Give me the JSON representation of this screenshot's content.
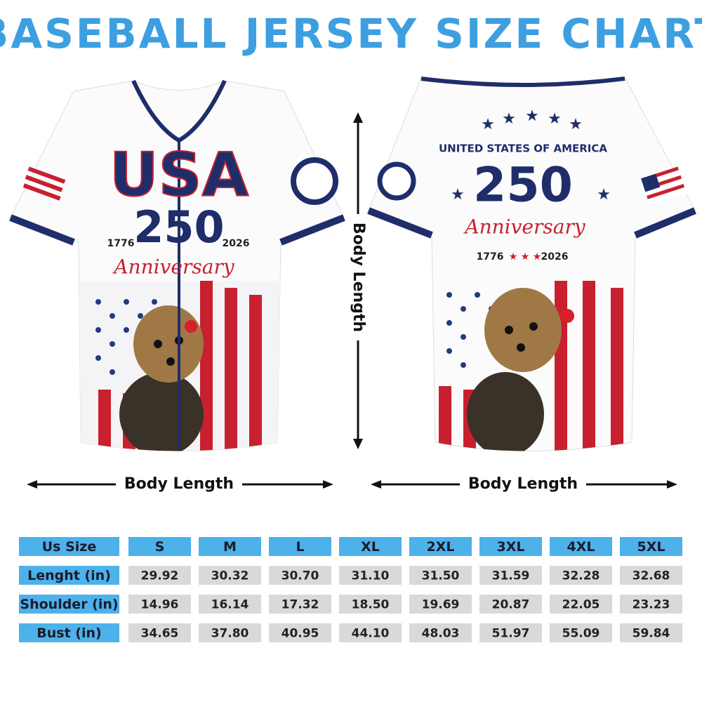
{
  "title": "BASEBALL JERSEY SIZE CHART",
  "front": {
    "big": "USA",
    "number": "250",
    "year_start": "1776",
    "year_end": "2026",
    "script": "Anniversary"
  },
  "back": {
    "heading": "UNITED STATES OF AMERICA",
    "number": "250",
    "script": "Anniversary",
    "year_start": "1776",
    "year_end": "2026"
  },
  "measurements": {
    "vertical": "Body Length",
    "front_horizontal": "Body Length",
    "back_horizontal": "Body Length"
  },
  "table": {
    "header": [
      "Us Size",
      "S",
      "M",
      "L",
      "XL",
      "2XL",
      "3XL",
      "4XL",
      "5XL"
    ],
    "rows": [
      [
        "Lenght (in)",
        "29.92",
        "30.32",
        "30.70",
        "31.10",
        "31.50",
        "31.59",
        "32.28",
        "32.68"
      ],
      [
        "Shoulder (in)",
        "14.96",
        "16.14",
        "17.32",
        "18.50",
        "19.69",
        "20.87",
        "22.05",
        "23.23"
      ],
      [
        "Bust (in)",
        "34.65",
        "37.80",
        "40.95",
        "44.10",
        "48.03",
        "51.97",
        "55.09",
        "59.84"
      ]
    ]
  }
}
